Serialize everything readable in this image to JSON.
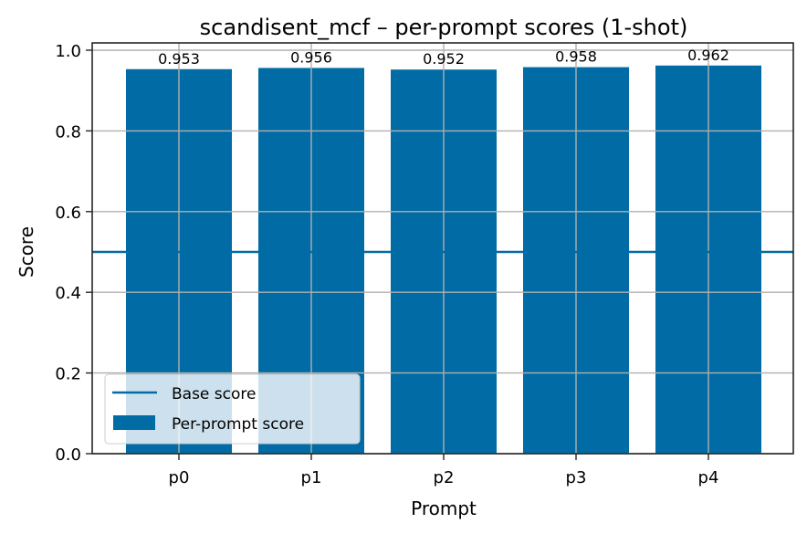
{
  "chart_data": {
    "type": "bar",
    "title": "scandisent_mcf – per-prompt scores (1-shot)",
    "xlabel": "Prompt",
    "ylabel": "Score",
    "categories": [
      "p0",
      "p1",
      "p2",
      "p3",
      "p4"
    ],
    "series": [
      {
        "name": "Per-prompt score",
        "type": "bar",
        "values": [
          0.953,
          0.956,
          0.952,
          0.958,
          0.962
        ]
      },
      {
        "name": "Base score",
        "type": "hline",
        "value": 0.5
      }
    ],
    "bar_labels": [
      "0.953",
      "0.956",
      "0.952",
      "0.958",
      "0.962"
    ],
    "yticks": [
      "0.0",
      "0.2",
      "0.4",
      "0.6",
      "0.8",
      "1.0"
    ],
    "ylim": [
      0,
      1.0
    ],
    "grid": true,
    "legend_position": "lower left",
    "colors": {
      "bar": "#006ba4",
      "base_line": "#006ba4",
      "grid": "#b0b0b0",
      "axes": "#262626"
    }
  }
}
